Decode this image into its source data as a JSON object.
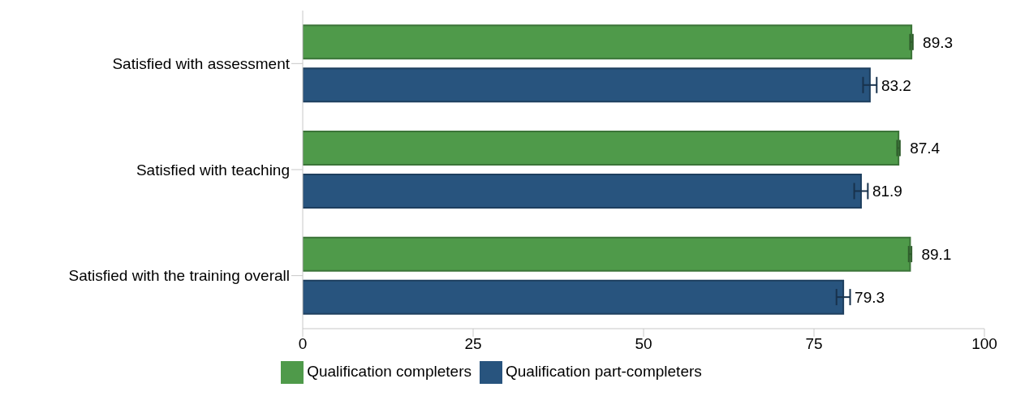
{
  "chart_data": {
    "type": "bar",
    "orientation": "horizontal",
    "categories": [
      "Satisfied with assessment",
      "Satisfied with teaching",
      "Satisfied with the training overall"
    ],
    "series": [
      {
        "name": "Qualification completers",
        "color": "#4f9a4a",
        "values": [
          89.3,
          87.4,
          89.1
        ],
        "errors": [
          0.2,
          0.2,
          0.2
        ]
      },
      {
        "name": "Qualification part-completers",
        "color": "#28547e",
        "values": [
          83.2,
          81.9,
          79.3
        ],
        "errors": [
          1,
          1,
          1
        ]
      }
    ],
    "xlim": [
      0,
      100
    ],
    "xticks": [
      0,
      25,
      50,
      75,
      100
    ],
    "grid": false,
    "legend": "bottom",
    "data_labels": true
  }
}
